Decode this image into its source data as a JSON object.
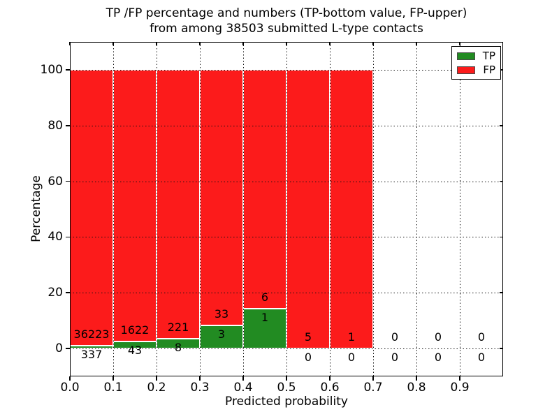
{
  "chart_data": {
    "type": "bar",
    "stacked": true,
    "title_line1": "TP /FP percentage and numbers (TP-bottom value, FP-upper)",
    "title_line2": "from among 38503 submitted L-type contacts",
    "total_submitted_contacts": 38503,
    "xlabel": "Predicted probability",
    "ylabel": "Percentage",
    "xlim": [
      0.0,
      1.0
    ],
    "ylim": [
      -10,
      110
    ],
    "x_ticks": [
      0.0,
      0.1,
      0.2,
      0.3,
      0.4,
      0.5,
      0.6,
      0.7,
      0.8,
      0.9
    ],
    "x_tick_labels": [
      "0.0",
      "0.1",
      "0.2",
      "0.3",
      "0.4",
      "0.5",
      "0.6",
      "0.7",
      "0.8",
      "0.9"
    ],
    "y_ticks": [
      0,
      20,
      40,
      60,
      80,
      100
    ],
    "y_tick_labels": [
      "0",
      "20",
      "40",
      "60",
      "80",
      "100"
    ],
    "bin_width": 0.1,
    "bin_starts": [
      0.0,
      0.1,
      0.2,
      0.3,
      0.4,
      0.5,
      0.6,
      0.7,
      0.8,
      0.9
    ],
    "grid_style": "dotted",
    "legend_position": "upper-right",
    "series": [
      {
        "name": "TP",
        "color": "#228B22",
        "counts": [
          337,
          43,
          8,
          3,
          1,
          0,
          0,
          0,
          0,
          0
        ],
        "pct": [
          0.9217,
          2.5826,
          3.4934,
          8.3333,
          14.2857,
          0,
          0,
          0,
          0,
          0
        ]
      },
      {
        "name": "FP",
        "color": "#FC1B1B",
        "counts": [
          36223,
          1622,
          221,
          33,
          6,
          5,
          1,
          0,
          0,
          0
        ],
        "pct": [
          99.0783,
          97.4174,
          96.5066,
          91.6667,
          85.7143,
          100,
          100,
          0,
          0,
          0
        ]
      }
    ]
  }
}
